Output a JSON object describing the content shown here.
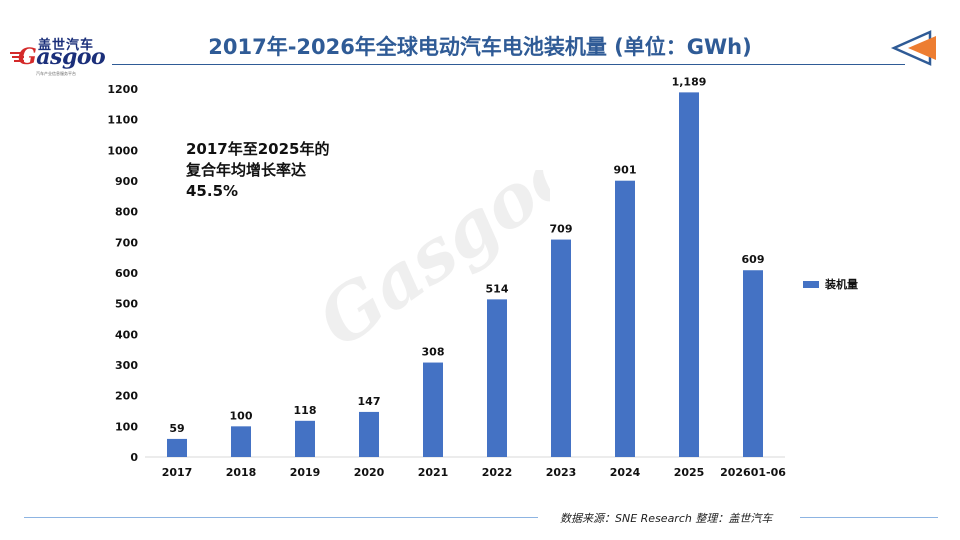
{
  "brand": {
    "logo_cn": "盖世汽车",
    "logo_en": "Gasgoo",
    "logo_sub": "汽车产业信息服务平台"
  },
  "page_title": "2017年-2026年全球电动汽车电池装机量 (单位：GWh)",
  "annotation": "2017年至2025年的\n复合年均增长率达\n45.5%",
  "source": "数据来源：SNE Research 整理：盖世汽车",
  "colors": {
    "title": "#2f5b96",
    "bar": "#4472c4",
    "arrow_blue": "#2f5b96",
    "arrow_orange": "#ed7d31"
  },
  "chart_data": {
    "type": "bar",
    "categories": [
      "2017",
      "2018",
      "2019",
      "2020",
      "2021",
      "2022",
      "2023",
      "2024",
      "2025",
      "202601-06"
    ],
    "series": [
      {
        "name": "装机量",
        "values": [
          59,
          100,
          118,
          147,
          308,
          514,
          709,
          901,
          1189,
          609
        ],
        "data_labels": [
          "59",
          "100",
          "118",
          "147",
          "308",
          "514",
          "709",
          "901",
          "1,189",
          "609"
        ]
      }
    ],
    "yticks": [
      0,
      100,
      200,
      300,
      400,
      500,
      600,
      700,
      800,
      900,
      1000,
      1100,
      1200
    ],
    "ylim": [
      0,
      1200
    ],
    "grid": false,
    "legend_position": "right"
  }
}
